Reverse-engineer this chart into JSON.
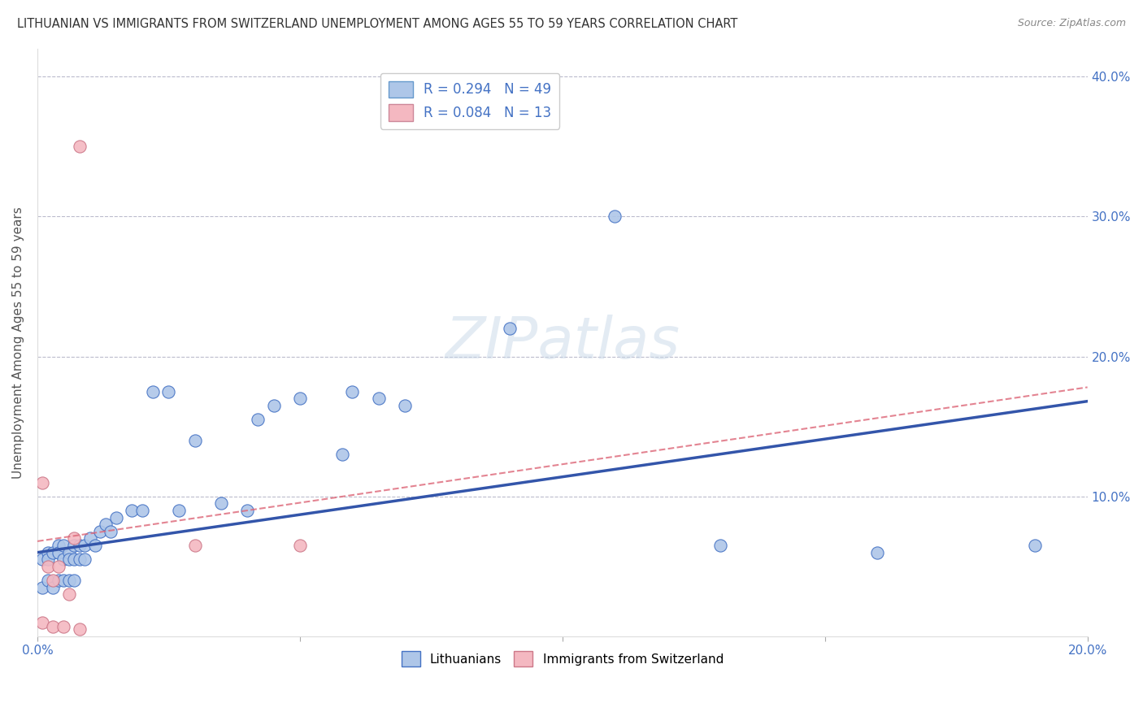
{
  "title": "LITHUANIAN VS IMMIGRANTS FROM SWITZERLAND UNEMPLOYMENT AMONG AGES 55 TO 59 YEARS CORRELATION CHART",
  "source": "Source: ZipAtlas.com",
  "ylabel": "Unemployment Among Ages 55 to 59 years",
  "xlim": [
    0.0,
    0.2
  ],
  "ylim": [
    0.0,
    0.42
  ],
  "xticks": [
    0.0,
    0.05,
    0.1,
    0.15,
    0.2
  ],
  "xtick_labels": [
    "0.0%",
    "",
    "",
    "",
    "20.0%"
  ],
  "yticks": [
    0.0,
    0.1,
    0.2,
    0.3,
    0.4
  ],
  "ytick_labels_right": [
    "",
    "10.0%",
    "20.0%",
    "30.0%",
    "40.0%"
  ],
  "legend_entries": [
    {
      "label": "R = 0.294   N = 49",
      "color": "#aec6e8",
      "edgecolor": "#6699cc"
    },
    {
      "label": "R = 0.084   N = 13",
      "color": "#f4b8c1",
      "edgecolor": "#cc8899"
    }
  ],
  "blue_scatter_x": [
    0.001,
    0.001,
    0.002,
    0.002,
    0.002,
    0.003,
    0.003,
    0.004,
    0.004,
    0.004,
    0.005,
    0.005,
    0.005,
    0.006,
    0.006,
    0.006,
    0.007,
    0.007,
    0.007,
    0.008,
    0.008,
    0.009,
    0.009,
    0.01,
    0.011,
    0.012,
    0.013,
    0.014,
    0.015,
    0.018,
    0.02,
    0.022,
    0.025,
    0.027,
    0.03,
    0.035,
    0.04,
    0.042,
    0.045,
    0.05,
    0.058,
    0.06,
    0.065,
    0.07,
    0.09,
    0.11,
    0.13,
    0.16,
    0.19
  ],
  "blue_scatter_y": [
    0.055,
    0.035,
    0.06,
    0.055,
    0.04,
    0.06,
    0.035,
    0.065,
    0.06,
    0.04,
    0.065,
    0.055,
    0.04,
    0.06,
    0.055,
    0.04,
    0.065,
    0.055,
    0.04,
    0.065,
    0.055,
    0.065,
    0.055,
    0.07,
    0.065,
    0.075,
    0.08,
    0.075,
    0.085,
    0.09,
    0.09,
    0.175,
    0.175,
    0.09,
    0.14,
    0.095,
    0.09,
    0.155,
    0.165,
    0.17,
    0.13,
    0.175,
    0.17,
    0.165,
    0.22,
    0.3,
    0.065,
    0.06,
    0.065
  ],
  "pink_scatter_x": [
    0.001,
    0.001,
    0.002,
    0.003,
    0.003,
    0.004,
    0.005,
    0.006,
    0.007,
    0.008,
    0.03,
    0.05,
    0.008
  ],
  "pink_scatter_y": [
    0.11,
    0.01,
    0.05,
    0.04,
    0.007,
    0.05,
    0.007,
    0.03,
    0.07,
    0.005,
    0.065,
    0.065,
    0.35
  ],
  "blue_line_x0": 0.0,
  "blue_line_x1": 0.2,
  "blue_line_y0": 0.06,
  "blue_line_y1": 0.168,
  "pink_line_x0": 0.0,
  "pink_line_x1": 0.2,
  "pink_line_y0": 0.068,
  "pink_line_y1": 0.178,
  "blue_scatter_facecolor": "#aec6e8",
  "blue_scatter_edgecolor": "#4472c4",
  "pink_scatter_facecolor": "#f4b8c1",
  "pink_scatter_edgecolor": "#cc7788",
  "blue_line_color": "#3355aa",
  "pink_line_color": "#dd6677",
  "watermark_text": "ZIPatlas",
  "background_color": "#ffffff",
  "grid_color": "#bbbbcc"
}
